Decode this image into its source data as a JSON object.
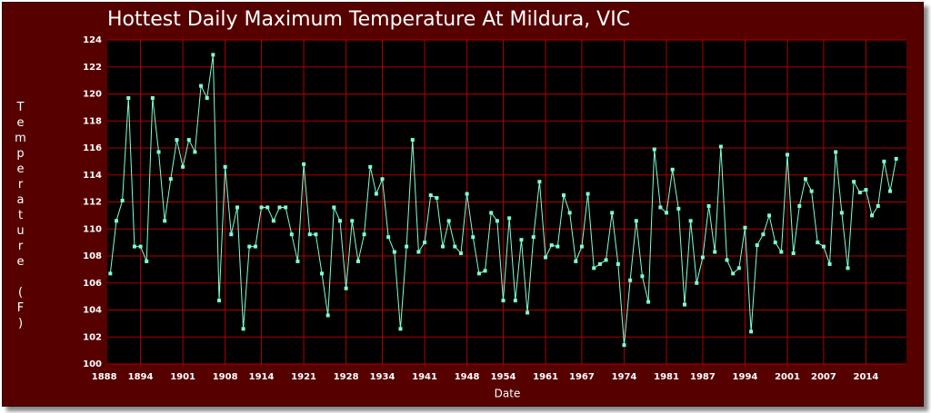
{
  "chart_data": {
    "type": "line",
    "title": "Hottest Daily Maximum Temperature At Mildura, VIC",
    "x_label": "Date",
    "y_label": "Temperature (F)",
    "x": [
      1889,
      1890,
      1891,
      1892,
      1893,
      1894,
      1895,
      1896,
      1897,
      1898,
      1899,
      1900,
      1901,
      1902,
      1903,
      1904,
      1905,
      1906,
      1907,
      1908,
      1909,
      1910,
      1911,
      1912,
      1913,
      1914,
      1915,
      1916,
      1917,
      1918,
      1919,
      1920,
      1921,
      1922,
      1923,
      1924,
      1925,
      1926,
      1927,
      1928,
      1929,
      1930,
      1931,
      1932,
      1933,
      1934,
      1935,
      1936,
      1937,
      1938,
      1939,
      1940,
      1941,
      1942,
      1943,
      1944,
      1945,
      1946,
      1947,
      1948,
      1949,
      1950,
      1951,
      1952,
      1953,
      1954,
      1955,
      1956,
      1957,
      1958,
      1959,
      1960,
      1961,
      1962,
      1963,
      1964,
      1965,
      1966,
      1967,
      1968,
      1969,
      1970,
      1971,
      1972,
      1973,
      1974,
      1975,
      1976,
      1977,
      1978,
      1979,
      1980,
      1981,
      1982,
      1983,
      1984,
      1985,
      1986,
      1987,
      1988,
      1989,
      1990,
      1991,
      1992,
      1993,
      1994,
      1995,
      1996,
      1997,
      1998,
      1999,
      2000,
      2001,
      2002,
      2003,
      2004,
      2005,
      2006,
      2007,
      2008,
      2009,
      2010,
      2011,
      2012,
      2013,
      2014,
      2015,
      2016,
      2017,
      2018,
      2019
    ],
    "series": [
      {
        "name": "Temperature",
        "color": "#7fffd4",
        "values": [
          106.7,
          110.6,
          112.1,
          119.7,
          108.7,
          108.7,
          107.6,
          119.7,
          115.7,
          110.6,
          113.7,
          116.6,
          114.6,
          116.6,
          115.7,
          120.6,
          119.7,
          122.9,
          104.7,
          114.6,
          109.6,
          111.6,
          102.6,
          108.7,
          108.7,
          111.6,
          111.6,
          110.6,
          111.6,
          111.6,
          109.6,
          107.6,
          114.8,
          109.6,
          109.6,
          106.7,
          103.6,
          111.6,
          110.6,
          105.6,
          110.6,
          107.6,
          109.6,
          114.6,
          112.6,
          113.7,
          109.4,
          108.3,
          102.6,
          108.7,
          116.6,
          108.3,
          109.0,
          112.5,
          112.3,
          108.7,
          110.6,
          108.7,
          108.2,
          112.6,
          109.4,
          106.7,
          106.9,
          111.2,
          110.6,
          104.7,
          110.8,
          104.7,
          109.2,
          103.8,
          109.4,
          113.5,
          107.9,
          108.8,
          108.7,
          112.5,
          111.2,
          107.6,
          108.7,
          112.6,
          107.1,
          107.4,
          107.7,
          111.2,
          107.4,
          101.4,
          106.2,
          110.6,
          106.5,
          104.6,
          115.9,
          111.6,
          111.2,
          114.4,
          111.5,
          104.4,
          110.6,
          106.0,
          107.9,
          111.7,
          108.3,
          116.1,
          107.7,
          106.7,
          107.1,
          110.1,
          102.4,
          108.8,
          109.6,
          111.0,
          109.0,
          108.3,
          115.5,
          108.2,
          111.7,
          113.7,
          112.8,
          109.0,
          108.7,
          107.4,
          115.7,
          111.2,
          107.1,
          113.5,
          112.7,
          112.9,
          111.0,
          111.7,
          115.0,
          112.8,
          115.2
        ]
      }
    ],
    "xlim": [
      1888.5,
      2020.7
    ],
    "xticks": [
      1888,
      1894,
      1901,
      1908,
      1914,
      1921,
      1928,
      1934,
      1941,
      1948,
      1954,
      1961,
      1967,
      1974,
      1981,
      1987,
      1994,
      2001,
      2007,
      2014
    ],
    "ylim": [
      100,
      124
    ],
    "yticks": [
      100,
      102,
      104,
      106,
      108,
      110,
      112,
      114,
      116,
      118,
      120,
      122,
      124
    ],
    "grid": true,
    "grid_color": "#b00000"
  }
}
